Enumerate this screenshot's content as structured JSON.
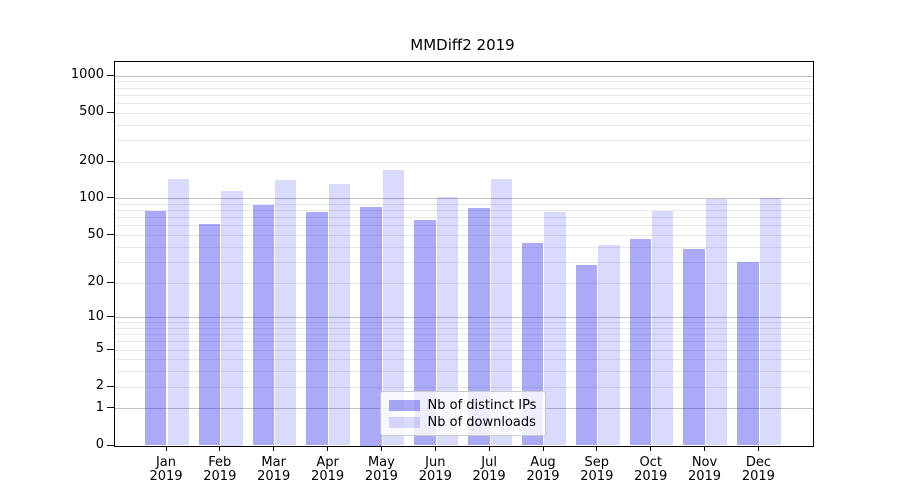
{
  "chart_data": {
    "type": "bar",
    "title": "MMDiff2 2019",
    "year": "2019",
    "categories": [
      "Jan",
      "Feb",
      "Mar",
      "Apr",
      "May",
      "Jun",
      "Jul",
      "Aug",
      "Sep",
      "Oct",
      "Nov",
      "Dec"
    ],
    "series": [
      {
        "name": "Nb of distinct IPs",
        "color": "rgba(20,20,235,0.36)",
        "values": [
          79,
          62,
          88,
          77,
          85,
          66,
          83,
          43,
          28,
          46,
          38,
          30
        ]
      },
      {
        "name": "Nb of downloads",
        "color": "rgba(20,20,235,0.155)",
        "values": [
          145,
          115,
          142,
          130,
          170,
          103,
          143,
          77,
          41,
          79,
          98,
          100
        ]
      }
    ],
    "y_scale": "log1p",
    "y_ticks": [
      0,
      1,
      2,
      5,
      10,
      20,
      50,
      100,
      200,
      500,
      1000
    ],
    "ylim": [
      0,
      1310
    ],
    "grid": {
      "major_color": "#c2c2c2",
      "minor_color": "#e9e9e9",
      "major_at": [
        1,
        10,
        100,
        1000
      ]
    },
    "legend_position": "lower center"
  }
}
